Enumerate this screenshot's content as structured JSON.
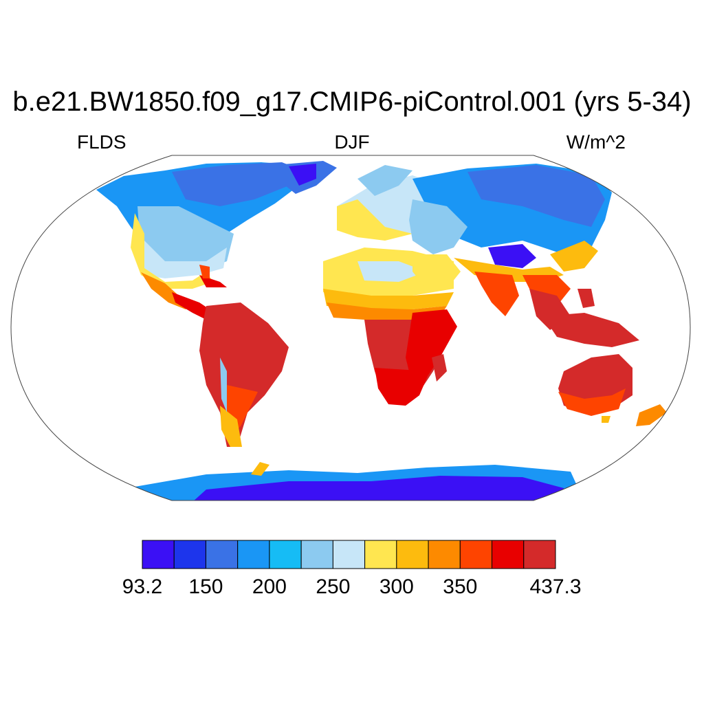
{
  "title": "b.e21.BW1850.f09_g17.CMIP6-piControl.001 (yrs 5-34)",
  "variable": "FLDS",
  "season": "DJF",
  "units": "W/m^2",
  "colorbar": {
    "colors": [
      "#3b10f5",
      "#1d35ec",
      "#3a72e6",
      "#1a96f5",
      "#16bcf5",
      "#8ccaf0",
      "#c7e6f8",
      "#ffe650",
      "#fdbb0e",
      "#fd8a00",
      "#fe4400",
      "#e80000",
      "#d42a2a"
    ],
    "labels": [
      "93.2",
      "150",
      "200",
      "250",
      "300",
      "350",
      "437.3"
    ],
    "label_bins": [
      0,
      2,
      4,
      6,
      8,
      10,
      13
    ]
  }
}
